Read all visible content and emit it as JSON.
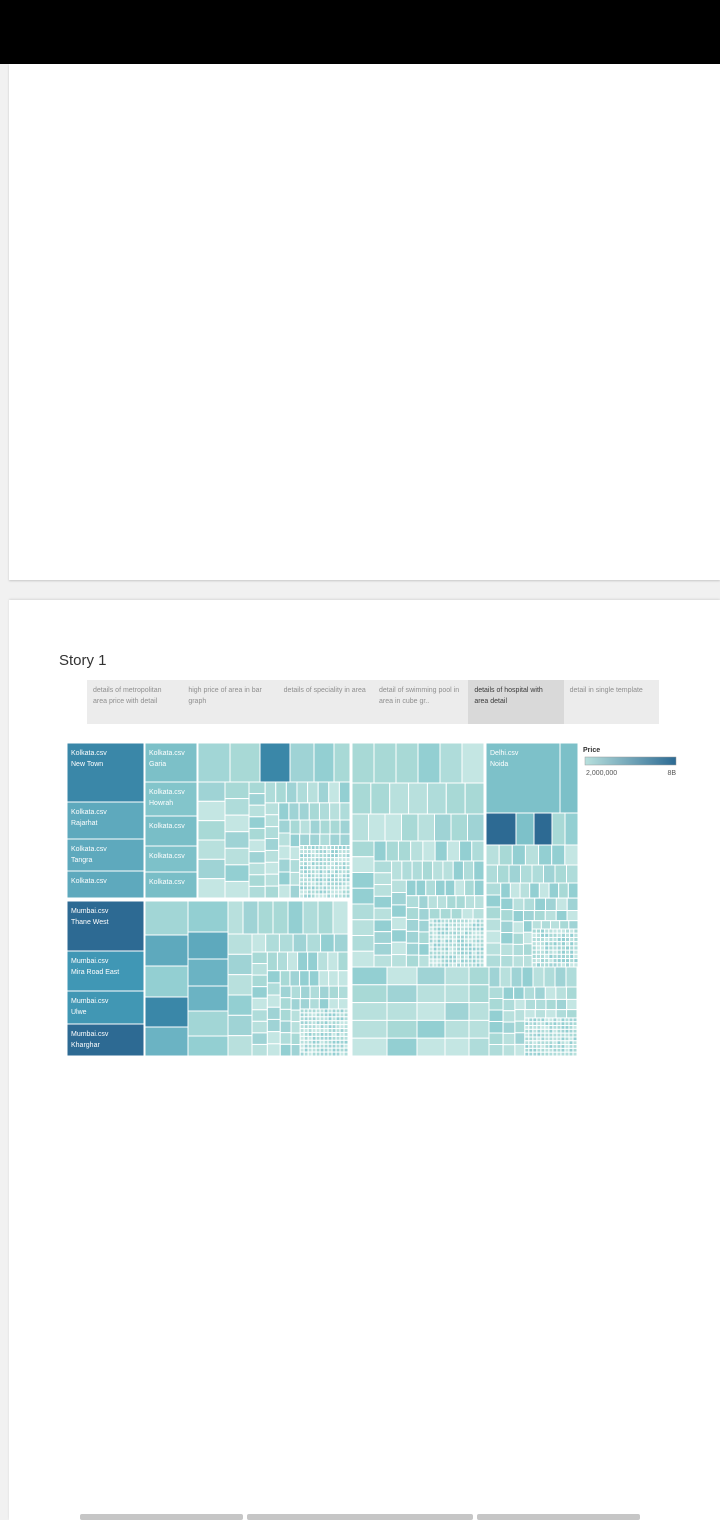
{
  "story": {
    "title": "Story 1",
    "tabs": [
      {
        "label": "details of metropolitan area price with detail",
        "active": false
      },
      {
        "label": "high price of area in bar graph",
        "active": false
      },
      {
        "label": "details of speciality in area",
        "active": false
      },
      {
        "label": "detail of swimming pool in area in cube gr..",
        "active": false
      },
      {
        "label": "details of hospital with area detail",
        "active": true
      },
      {
        "label": "detail in single template",
        "active": false
      }
    ]
  },
  "chart_data": {
    "type": "treemap",
    "color_field": "Price",
    "legend": {
      "title": "Price",
      "min_label": "2,000,000",
      "max_label": "8B",
      "min_color": "#b8e0dd",
      "max_color": "#2c6a93"
    },
    "labeled_cells": [
      {
        "file": "Kolkata.csv",
        "area": "New Town"
      },
      {
        "file": "Kolkata.csv",
        "area": "Rajarhat"
      },
      {
        "file": "Kolkata.csv",
        "area": "Tangra"
      },
      {
        "file": "Kolkata.csv",
        "area": ""
      },
      {
        "file": "Kolkata.csv",
        "area": "Garia"
      },
      {
        "file": "Kolkata.csv",
        "area": "Howrah"
      },
      {
        "file": "Kolkata.csv",
        "area": ""
      },
      {
        "file": "Kolkata.csv",
        "area": ""
      },
      {
        "file": "Kolkata.csv",
        "area": ""
      },
      {
        "file": "Mumbai.csv",
        "area": "Thane West"
      },
      {
        "file": "Mumbai.csv",
        "area": "Mira Road East"
      },
      {
        "file": "Mumbai.csv",
        "area": "Ulwe"
      },
      {
        "file": "Mumbai.csv",
        "area": "Kharghar"
      },
      {
        "file": "Delhi.csv",
        "area": "Noida"
      }
    ]
  }
}
